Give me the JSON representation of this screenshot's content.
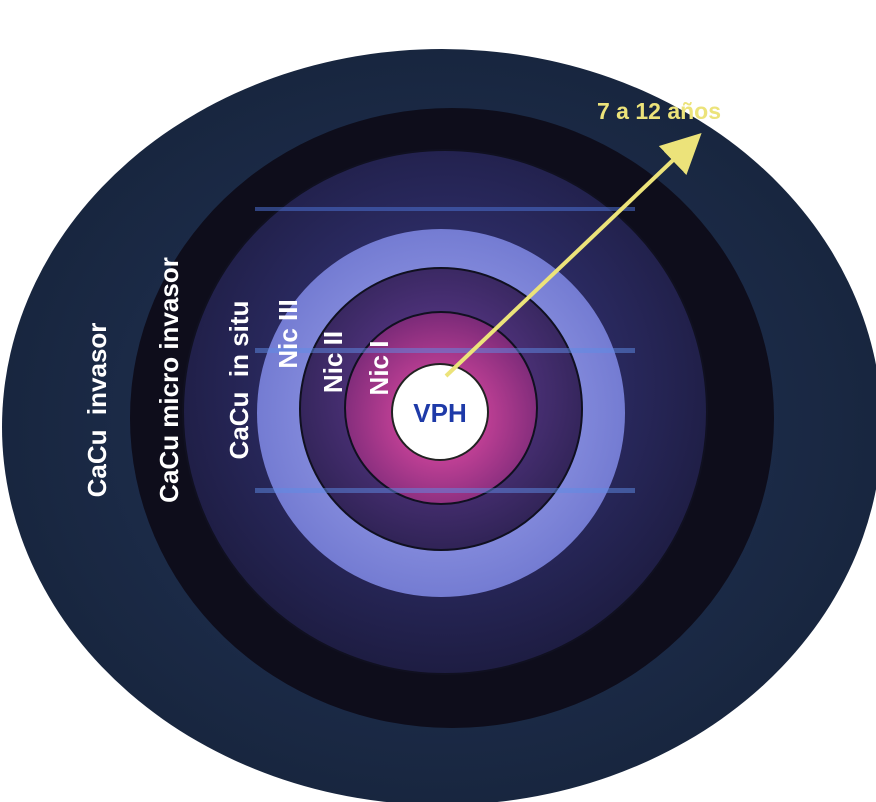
{
  "diagram": {
    "center_label": "VPH",
    "arrow_label": "7 a 12 años",
    "rings": [
      {
        "id": "cacu-invasor",
        "label": "CaCu  invasor",
        "color": "#1c2b4c"
      },
      {
        "id": "cacu-micro-invasor",
        "label": "CaCu micro invasor",
        "color": "#0e0d1b"
      },
      {
        "id": "cacu-in-situ",
        "label": "CaCu  in situ",
        "color": "#252452"
      },
      {
        "id": "nic-iii",
        "label": "Nic III",
        "color": "#8c93e4"
      },
      {
        "id": "nic-ii",
        "label": "Nic II",
        "color": "#3e2f6c"
      },
      {
        "id": "nic-i",
        "label": "Nic I",
        "color": "#c8399a"
      },
      {
        "id": "vph",
        "label": "VPH",
        "color": "#ffffff"
      }
    ],
    "colors": {
      "ring_text": "#ffffff",
      "center_text": "#1e3aa8",
      "arrow": "#ece37a",
      "arrow_text": "#ece37a"
    }
  }
}
